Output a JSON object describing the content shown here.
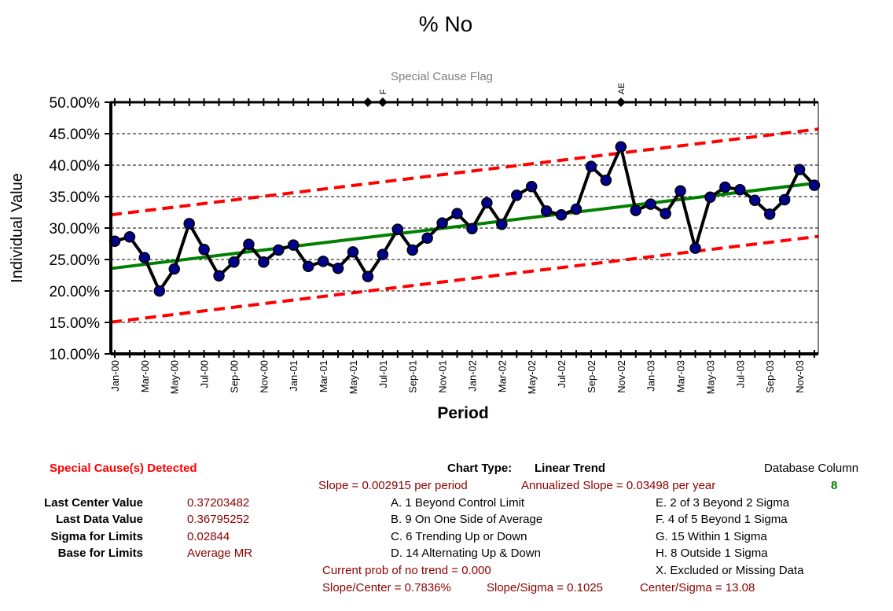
{
  "chart_data": {
    "type": "line",
    "title": "% No",
    "xlabel": "Period",
    "ylabel": "Individual Value",
    "flag_label": "Special Cause Flag",
    "ylim": [
      0.1,
      0.5
    ],
    "y_ticks": [
      0.1,
      0.15,
      0.2,
      0.25,
      0.3,
      0.35,
      0.4,
      0.45,
      0.5
    ],
    "y_tick_labels": [
      "10.00%",
      "15.00%",
      "20.00%",
      "25.00%",
      "30.00%",
      "35.00%",
      "40.00%",
      "45.00%",
      "50.00%"
    ],
    "x": [
      "Jan-00",
      "Feb-00",
      "Mar-00",
      "Apr-00",
      "May-00",
      "Jun-00",
      "Jul-00",
      "Aug-00",
      "Sep-00",
      "Oct-00",
      "Nov-00",
      "Dec-00",
      "Jan-01",
      "Feb-01",
      "Mar-01",
      "Apr-01",
      "May-01",
      "Jun-01",
      "Jul-01",
      "Aug-01",
      "Sep-01",
      "Oct-01",
      "Nov-01",
      "Dec-01",
      "Jan-02",
      "Feb-02",
      "Mar-02",
      "Apr-02",
      "May-02",
      "Jun-02",
      "Jul-02",
      "Aug-02",
      "Sep-02",
      "Oct-02",
      "Nov-02",
      "Dec-02",
      "Jan-03",
      "Feb-03",
      "Mar-03",
      "Apr-03",
      "May-03",
      "Jun-03",
      "Jul-03",
      "Aug-03",
      "Sep-03",
      "Oct-03",
      "Nov-03",
      "Dec-03"
    ],
    "x_tick_labels": [
      "Jan-00",
      "Mar-00",
      "May-00",
      "Jul-00",
      "Sep-00",
      "Nov-00",
      "Jan-01",
      "Mar-01",
      "May-01",
      "Jul-01",
      "Sep-01",
      "Nov-01",
      "Jan-02",
      "Mar-02",
      "May-02",
      "Jul-02",
      "Sep-02",
      "Nov-02",
      "Jan-03",
      "Mar-03",
      "May-03",
      "Jul-03",
      "Sep-03",
      "Nov-03"
    ],
    "series": [
      {
        "values": [
          0.279,
          0.286,
          0.253,
          0.2,
          0.235,
          0.307,
          0.266,
          0.224,
          0.246,
          0.274,
          0.246,
          0.265,
          0.273,
          0.239,
          0.247,
          0.236,
          0.262,
          0.223,
          0.258,
          0.298,
          0.265,
          0.284,
          0.308,
          0.323,
          0.299,
          0.34,
          0.306,
          0.352,
          0.366,
          0.327,
          0.321,
          0.33,
          0.398,
          0.376,
          0.429,
          0.328,
          0.338,
          0.323,
          0.359,
          0.268,
          0.349,
          0.365,
          0.361,
          0.344,
          0.322,
          0.345,
          0.393,
          0.368
        ]
      }
    ],
    "trend_line": {
      "start": 0.2357,
      "end": 0.372
    },
    "upper_limit": {
      "start": 0.321,
      "end": 0.4573
    },
    "lower_limit": {
      "start": 0.1504,
      "end": 0.2867
    },
    "flags": [
      {
        "period": "Jun-01",
        "label": ""
      },
      {
        "period": "Jul-01",
        "label": "F"
      },
      {
        "period": "Nov-02",
        "label": "AE"
      }
    ],
    "grid": true,
    "colors": {
      "data_line": "#000000",
      "marker_fill": "#00008b",
      "trend": "#008000",
      "limits": "#ff0000"
    }
  },
  "summary": {
    "special_cause": "Special Cause(s) Detected",
    "chart_type_label": "Chart Type:",
    "chart_type_value": "Linear Trend",
    "database_column_label": "Database Column",
    "database_column_value": "8",
    "slope": "Slope = 0.002915 per period",
    "annualized_slope": "Annualized Slope = 0.03498 per year",
    "stats": [
      {
        "label": "Last Center Value",
        "value": "0.37203482"
      },
      {
        "label": "Last Data Value",
        "value": "0.36795252"
      },
      {
        "label": "Sigma for Limits",
        "value": "0.02844"
      },
      {
        "label": "Base for Limits",
        "value": "Average MR"
      }
    ],
    "rules_left": [
      "A.  1 Beyond Control Limit",
      "B.  9 On One Side of Average",
      "C.  6 Trending Up or Down",
      "D.  14 Alternating  Up & Down"
    ],
    "rules_right": [
      "E.   2 of 3 Beyond 2 Sigma",
      "F.   4 of 5 Beyond 1 Sigma",
      "G.   15 Within 1 Sigma",
      "H.   8 Outside 1 Sigma",
      "X.   Excluded or Missing Data"
    ],
    "prob_no_trend": "Current prob of no trend = 0.000",
    "slope_center": "Slope/Center = 0.7836%",
    "slope_sigma": "Slope/Sigma = 0.1025",
    "center_sigma": "Center/Sigma = 13.08"
  }
}
